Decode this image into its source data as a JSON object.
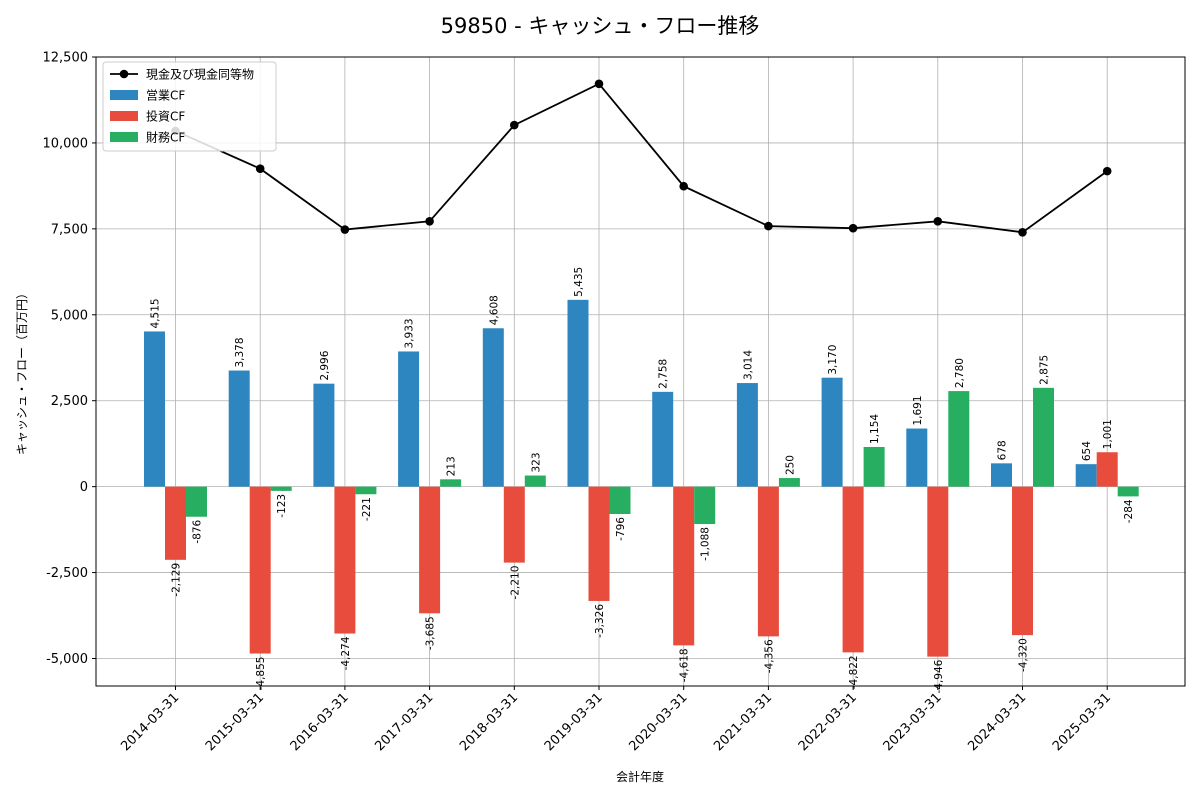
{
  "chart_data": {
    "type": "bar",
    "title": "59850 - キャッシュ・フロー推移",
    "xlabel": "会計年度",
    "ylabel": "キャッシュ・フロー（百万円）",
    "ylim": [
      -5800,
      12500
    ],
    "yticks": [
      -5000,
      -2500,
      0,
      2500,
      5000,
      7500,
      10000,
      12500
    ],
    "ytick_labels": [
      "-5,000",
      "-2,500",
      "0",
      "2,500",
      "5,000",
      "7,500",
      "10,000",
      "12,500"
    ],
    "grid": true,
    "legend_position": "top-left",
    "categories": [
      "2014-03-31",
      "2015-03-31",
      "2016-03-31",
      "2017-03-31",
      "2018-03-31",
      "2019-03-31",
      "2020-03-31",
      "2021-03-31",
      "2022-03-31",
      "2023-03-31",
      "2024-03-31",
      "2025-03-31"
    ],
    "line_series": {
      "name": "現金及び現金同等物",
      "color": "#000000",
      "values": [
        10350,
        9250,
        7480,
        7720,
        10520,
        11720,
        8740,
        7580,
        7520,
        7720,
        7400,
        9180
      ]
    },
    "series": [
      {
        "name": "営業CF",
        "color": "#2e86c1",
        "values": [
          4515,
          3378,
          2996,
          3933,
          4608,
          5435,
          2758,
          3014,
          3170,
          1691,
          678,
          654
        ],
        "labels": [
          "4,515",
          "3,378",
          "2,996",
          "3,933",
          "4,608",
          "5,435",
          "2,758",
          "3,014",
          "3,170",
          "1,691",
          "678",
          "654"
        ]
      },
      {
        "name": "投資CF",
        "color": "#e74c3c",
        "values": [
          -2129,
          -4855,
          -4274,
          -3685,
          -2210,
          -3326,
          -4618,
          -4356,
          -4822,
          -4946,
          -4320,
          1001
        ],
        "labels": [
          "-2,129",
          "-4,855",
          "-4,274",
          "-3,685",
          "-2,210",
          "-3,326",
          "-4,618",
          "-4,356",
          "-4,822",
          "-4,946",
          "-4,320",
          "1,001"
        ]
      },
      {
        "name": "財務CF",
        "color": "#27ae60",
        "values": [
          -876,
          -123,
          -221,
          213,
          323,
          -796,
          -1088,
          250,
          1154,
          2780,
          2875,
          -284
        ],
        "labels": [
          "-876",
          "-123",
          "-221",
          "213",
          "323",
          "-796",
          "-1,088",
          "250",
          "1,154",
          "2,780",
          "2,875",
          "-284"
        ]
      }
    ]
  }
}
